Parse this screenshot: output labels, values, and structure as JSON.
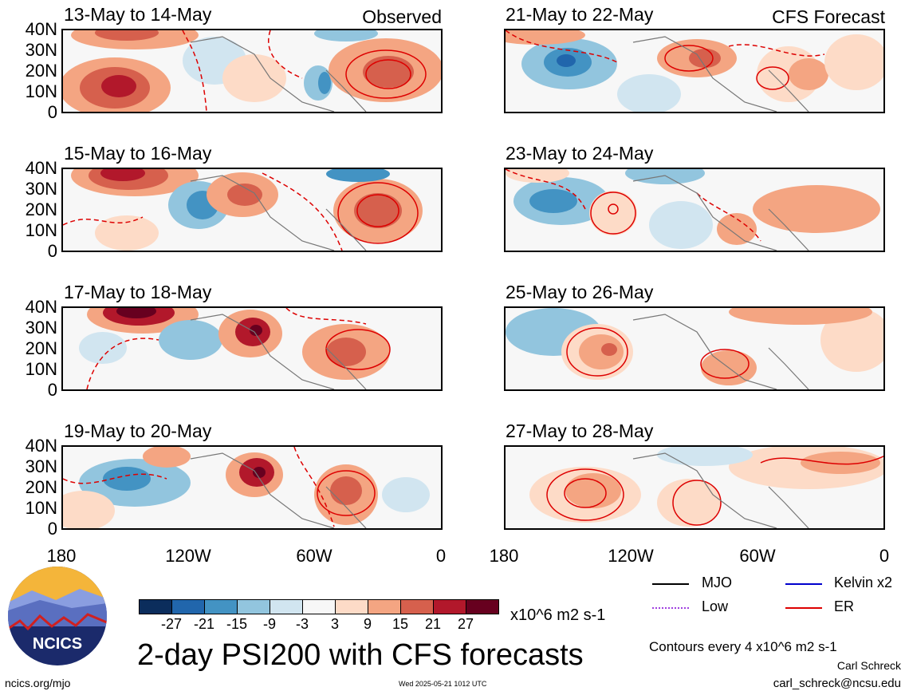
{
  "panels": [
    {
      "title": "13-May to 14-May",
      "label": "Observed"
    },
    {
      "title": "15-May to 16-May",
      "label": ""
    },
    {
      "title": "17-May to 18-May",
      "label": ""
    },
    {
      "title": "19-May to 20-May",
      "label": ""
    },
    {
      "title": "21-May to 22-May",
      "label": "CFS Forecast"
    },
    {
      "title": "23-May to 24-May",
      "label": ""
    },
    {
      "title": "25-May to 26-May",
      "label": ""
    },
    {
      "title": "27-May to 28-May",
      "label": ""
    }
  ],
  "y_ticks": [
    "40N",
    "30N",
    "20N",
    "10N",
    "0"
  ],
  "x_ticks": [
    "180",
    "120W",
    "60W",
    "0"
  ],
  "colorbar": {
    "labels": [
      "-27",
      "-21",
      "-15",
      "-9",
      "-3",
      "3",
      "9",
      "15",
      "21",
      "27"
    ],
    "colors": [
      "#0b2d5c",
      "#2166ac",
      "#4393c3",
      "#92c5de",
      "#d1e5f0",
      "#f7f7f7",
      "#fddbc7",
      "#f4a582",
      "#d6604d",
      "#b2182b",
      "#67001f"
    ],
    "units": "x10^6 m2 s-1"
  },
  "legend": [
    {
      "name": "MJO",
      "color": "#000000"
    },
    {
      "name": "Kelvin x2",
      "color": "#0000cc"
    },
    {
      "name": "Low",
      "color": "#a040e0"
    },
    {
      "name": "ER",
      "color": "#dd0000"
    }
  ],
  "title": "2-day PSI200 with CFS forecasts",
  "contour_note": "Contours every 4 x10^6 m2 s-1",
  "author": "Carl Schreck",
  "email": "carl_schreck@ncsu.edu",
  "url": "ncics.org/mjo",
  "timestamp": "Wed 2025-05-21 1012 UTC",
  "logo_text": "NCICS"
}
